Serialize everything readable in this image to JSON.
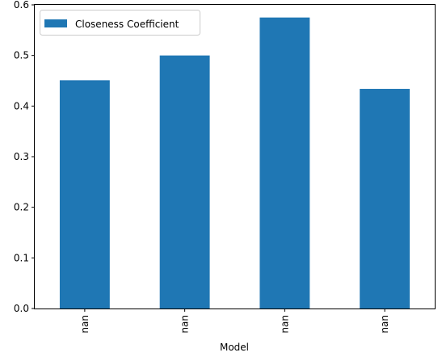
{
  "chart_data": {
    "type": "bar",
    "categories": [
      "nan",
      "nan",
      "nan",
      "nan"
    ],
    "series": [
      {
        "name": "Closeness Coefficient",
        "color": "#1f77b4",
        "values": [
          0.451,
          0.5,
          0.575,
          0.434
        ]
      }
    ],
    "xlabel": "Model",
    "ylabel": "",
    "ylim": [
      0,
      0.6
    ],
    "yticks": [
      "0.0",
      "0.1",
      "0.2",
      "0.3",
      "0.4",
      "0.5",
      "0.6"
    ],
    "grid": false,
    "legend_position": "top-left",
    "xtick_rotation": "vertical"
  }
}
